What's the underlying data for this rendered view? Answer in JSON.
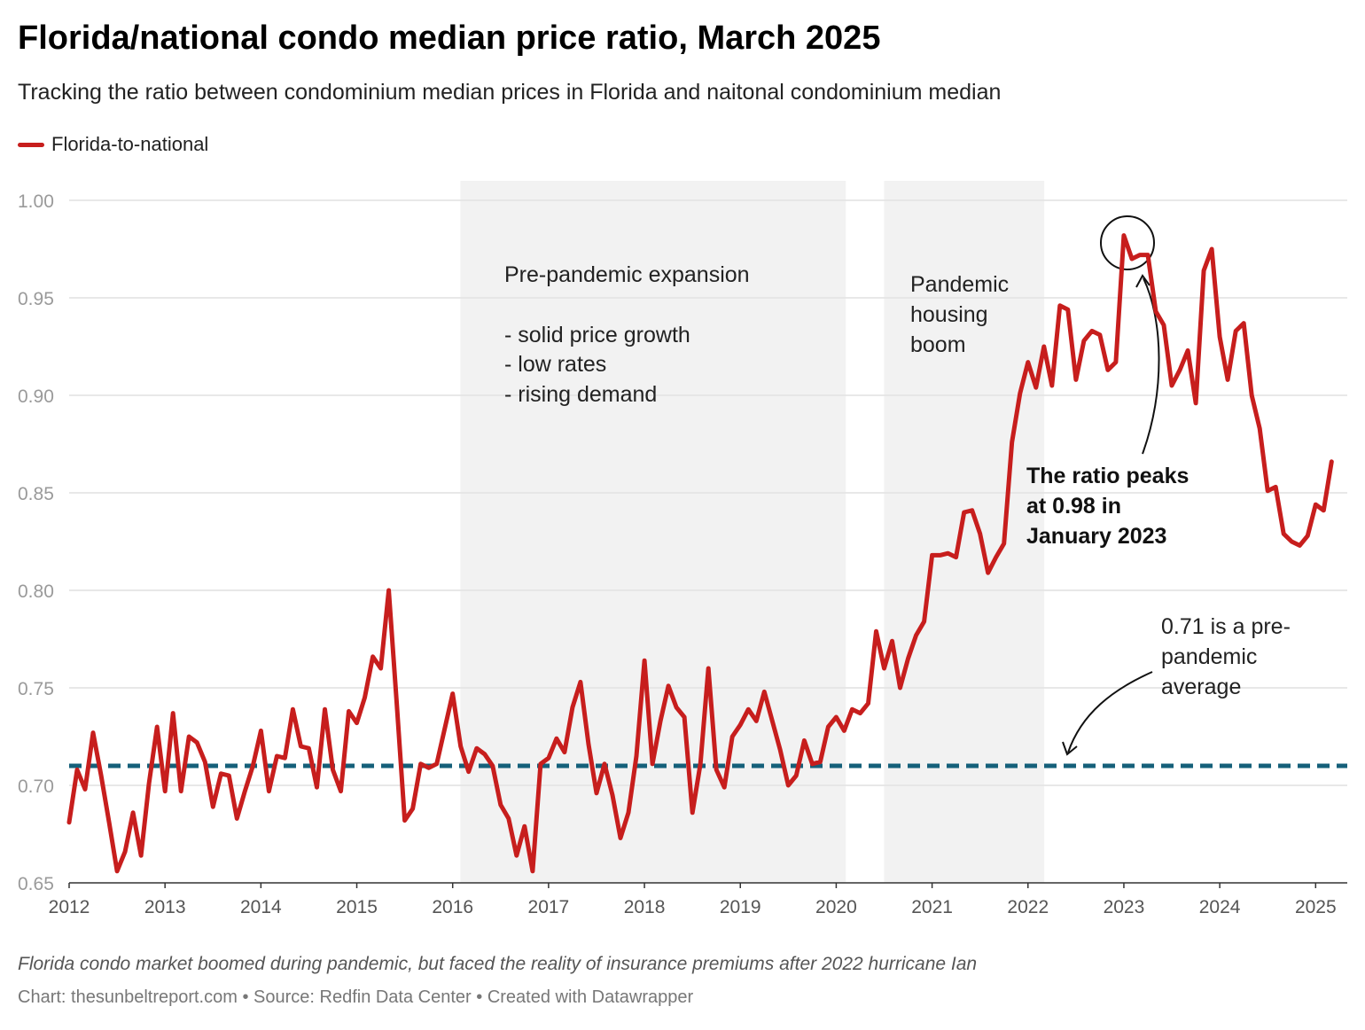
{
  "header": {
    "title": "Florida/national condo median price ratio, March 2025",
    "subtitle": "Tracking the ratio between condominium median prices in Florida and naitonal condominium median"
  },
  "legend": {
    "label": "Florida-to-national",
    "color": "#c71e1d"
  },
  "colors": {
    "line": "#c71e1d",
    "reference": "#15607a",
    "shade": "#f2f2f2",
    "grid": "#e1e1e1"
  },
  "footer": {
    "notes": "Florida condo market boomed during pandemic, but faced the reality of insurance premiums after 2022 hurricane Ian",
    "byline": "Chart: thesunbeltreport.com • Source: Redfin Data Center • Created with Datawrapper"
  },
  "chart_data": {
    "type": "line",
    "title": "Florida/national condo median price ratio, March 2025",
    "xlabel": "",
    "ylabel": "",
    "xlim": [
      2012,
      2025.33
    ],
    "ylim": [
      0.65,
      1.0
    ],
    "y_ticks": [
      "1.00",
      "0.95",
      "0.90",
      "0.85",
      "0.80",
      "0.75",
      "0.70",
      "0.65"
    ],
    "x_ticks": [
      "2012",
      "2013",
      "2014",
      "2015",
      "2016",
      "2017",
      "2018",
      "2019",
      "2020",
      "2021",
      "2022",
      "2023",
      "2024",
      "2025"
    ],
    "grid": true,
    "legend_position": "top-left",
    "series": [
      {
        "name": "Florida-to-national",
        "start": "2012-01",
        "frequency": "monthly",
        "values": [
          0.681,
          0.708,
          0.698,
          0.727,
          0.705,
          0.681,
          0.656,
          0.666,
          0.686,
          0.664,
          0.701,
          0.73,
          0.697,
          0.737,
          0.697,
          0.725,
          0.722,
          0.712,
          0.689,
          0.706,
          0.705,
          0.683,
          0.697,
          0.71,
          0.728,
          0.697,
          0.715,
          0.714,
          0.739,
          0.72,
          0.719,
          0.699,
          0.739,
          0.708,
          0.697,
          0.738,
          0.732,
          0.745,
          0.766,
          0.76,
          0.8,
          0.742,
          0.682,
          0.688,
          0.711,
          0.709,
          0.711,
          0.729,
          0.747,
          0.72,
          0.707,
          0.719,
          0.716,
          0.71,
          0.69,
          0.683,
          0.664,
          0.679,
          0.656,
          0.711,
          0.714,
          0.724,
          0.717,
          0.74,
          0.753,
          0.721,
          0.696,
          0.711,
          0.695,
          0.673,
          0.686,
          0.715,
          0.764,
          0.711,
          0.733,
          0.751,
          0.74,
          0.735,
          0.686,
          0.711,
          0.76,
          0.708,
          0.699,
          0.725,
          0.731,
          0.739,
          0.733,
          0.748,
          0.733,
          0.718,
          0.7,
          0.705,
          0.723,
          0.711,
          0.712,
          0.73,
          0.735,
          0.728,
          0.739,
          0.737,
          0.742,
          0.779,
          0.76,
          0.774,
          0.75,
          0.765,
          0.777,
          0.784,
          0.818,
          0.818,
          0.819,
          0.817,
          0.84,
          0.841,
          0.829,
          0.809,
          0.817,
          0.824,
          0.876,
          0.901,
          0.917,
          0.904,
          0.925,
          0.905,
          0.946,
          0.944,
          0.908,
          0.928,
          0.933,
          0.931,
          0.913,
          0.917,
          0.982,
          0.97,
          0.972,
          0.972,
          0.943,
          0.936,
          0.905,
          0.913,
          0.923,
          0.896,
          0.964,
          0.975,
          0.93,
          0.908,
          0.933,
          0.937,
          0.9,
          0.883,
          0.851,
          0.853,
          0.829,
          0.825,
          0.823,
          0.828,
          0.844,
          0.841,
          0.866
        ]
      }
    ],
    "reference_line": {
      "value": 0.71,
      "style": "dashed",
      "label": "0.71 is a pre-pandemic average"
    },
    "shaded_periods": [
      {
        "label": "Pre-pandemic expansion",
        "bullets": [
          "- solid price growth",
          "- low rates",
          "- rising demand"
        ],
        "start": 2016.08,
        "end": 2020.1
      },
      {
        "label": "Pandemic housing boom",
        "start": 2020.5,
        "end": 2022.17
      }
    ],
    "annotations": [
      {
        "text": "The ratio peaks at 0.98 in January 2023",
        "x": 2023.0,
        "y": 0.982
      },
      {
        "text": "0.71 is a pre-pandemic average",
        "x": 2023.3,
        "y": 0.71
      }
    ]
  }
}
